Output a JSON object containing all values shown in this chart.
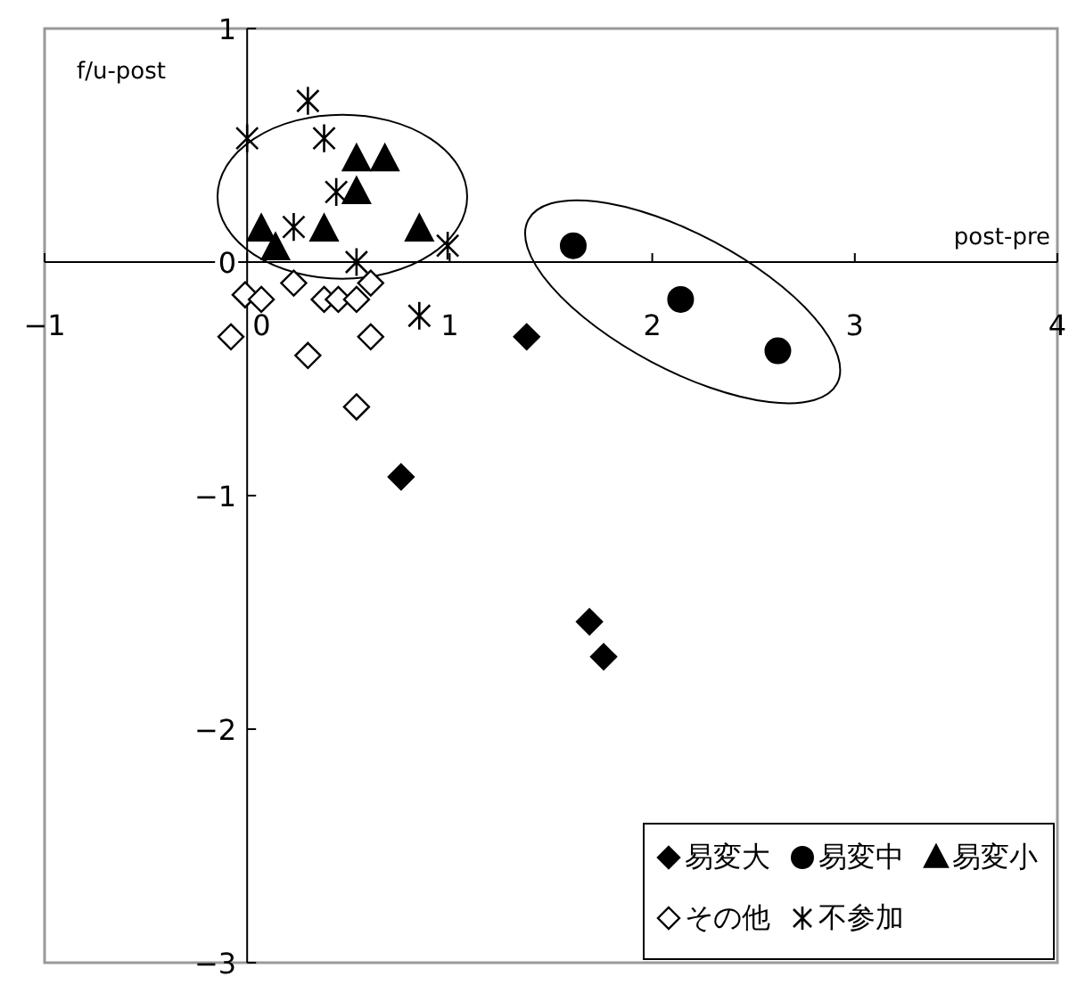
{
  "chart_data": {
    "type": "scatter",
    "xlabel": "post-pre",
    "ylabel": "f/u-post",
    "xlim": [
      -1,
      4
    ],
    "ylim": [
      -3,
      1
    ],
    "xticks": [
      -1,
      0,
      1,
      2,
      3,
      4
    ],
    "yticks": [
      -3,
      -2,
      -1,
      0,
      1
    ],
    "grid": false,
    "legend": "bottom right",
    "series": [
      {
        "name": "易変大",
        "color": "#000000",
        "marker": "diamond",
        "x": [
          0.76,
          1.69,
          1.76,
          1.38
        ],
        "values": [
          -0.92,
          -1.54,
          -1.69,
          -0.32
        ]
      },
      {
        "name": "易変中",
        "color": "#000000",
        "marker": "circle",
        "x": [
          1.61,
          2.14,
          2.62
        ],
        "values": [
          0.07,
          -0.16,
          -0.38
        ]
      },
      {
        "name": "易変小",
        "color": "#000000",
        "marker": "triangle",
        "x": [
          0.54,
          0.68,
          0.54,
          0.07,
          0.14,
          0.38,
          0.85
        ],
        "values": [
          0.44,
          0.44,
          0.3,
          0.14,
          0.06,
          0.14,
          0.14
        ]
      },
      {
        "name": "その他",
        "color": "#ffffff",
        "marker": "diamond",
        "x": [
          0.23,
          -0.01,
          0.07,
          -0.08,
          0.3,
          0.38,
          0.45,
          0.54,
          0.61,
          0.61,
          0.54
        ],
        "values": [
          -0.09,
          -0.14,
          -0.16,
          -0.32,
          -0.4,
          -0.16,
          -0.16,
          -0.16,
          -0.09,
          -0.32,
          -0.62
        ]
      },
      {
        "name": "不参加",
        "color": "#000000",
        "marker": "cross",
        "x": [
          0.3,
          0.0,
          0.38,
          0.44,
          0.23,
          0.99,
          0.54,
          0.85
        ],
        "values": [
          0.69,
          0.53,
          0.53,
          0.3,
          0.15,
          0.07,
          0.0,
          -0.23
        ]
      }
    ]
  }
}
